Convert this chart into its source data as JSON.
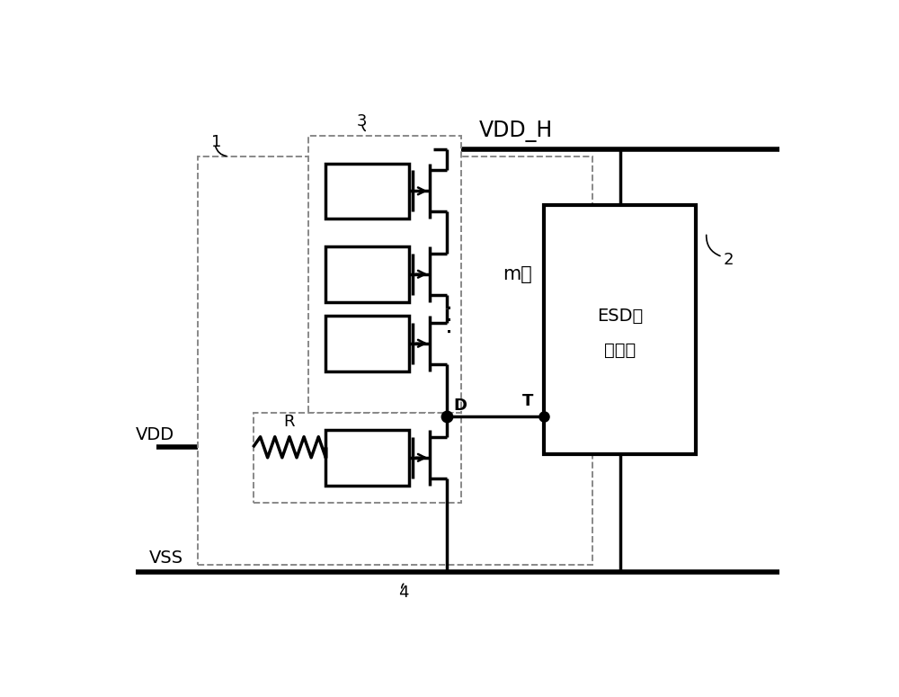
{
  "bg_color": "#ffffff",
  "vdd_h_label": "VDD_H",
  "vdd_label": "VDD",
  "vss_label": "VSS",
  "m_label": "m个",
  "esd_label1": "ESD保",
  "esd_label2": "护器件",
  "d_label": "D",
  "t_label": "T",
  "r_label": "R",
  "label1": "1",
  "label2": "2",
  "label3": "3",
  "label4": "4",
  "lw_main": 2.5,
  "lw_rail": 4.0,
  "lw_dash": 1.4
}
